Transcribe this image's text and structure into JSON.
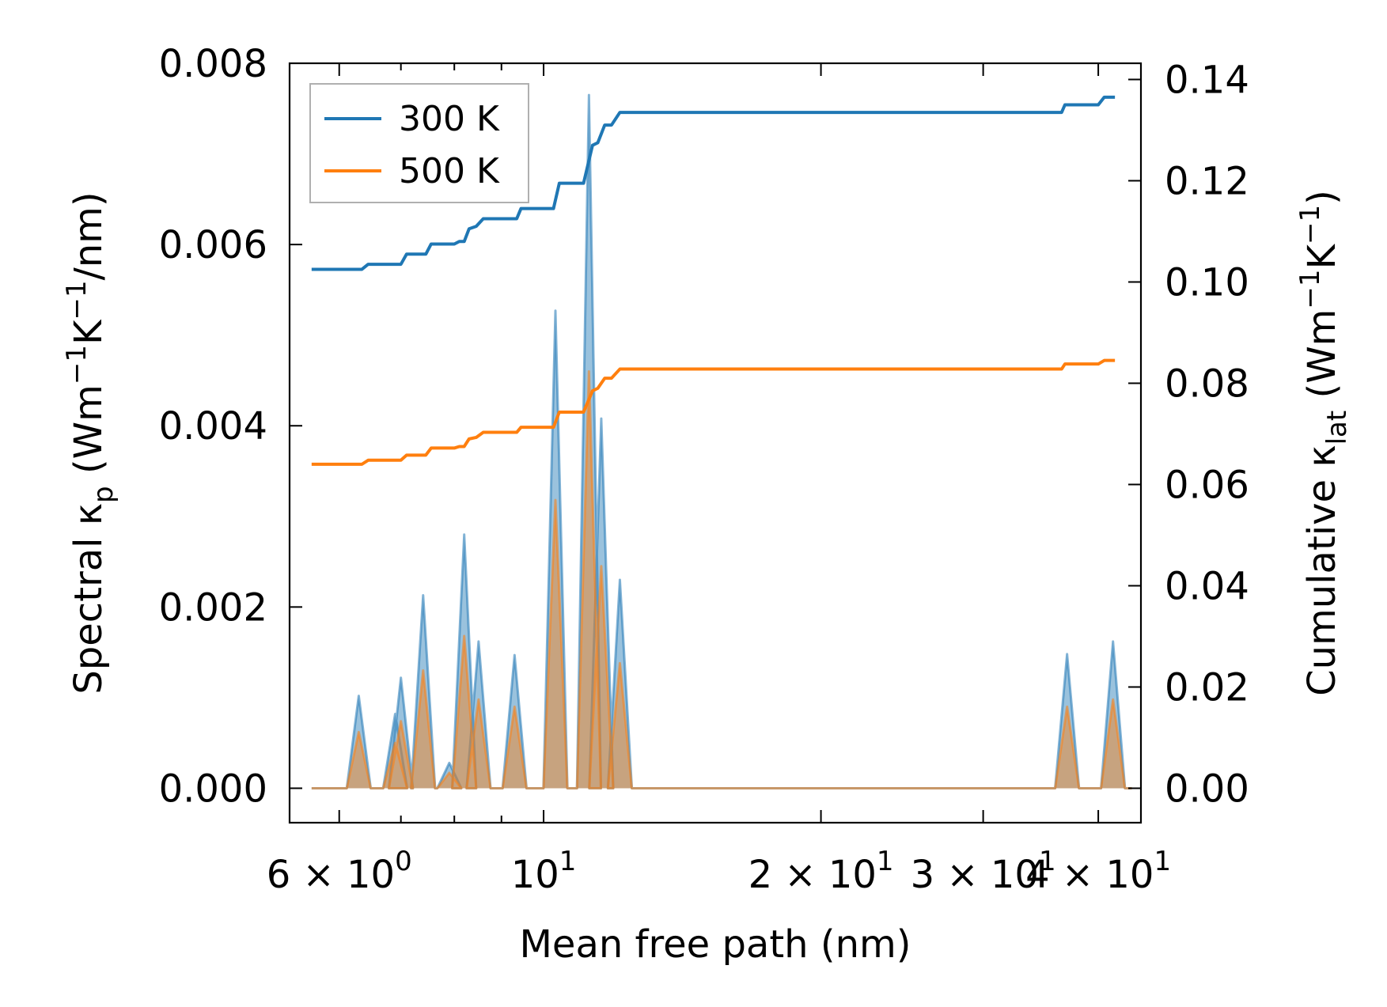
{
  "chart_data": {
    "type": "line",
    "xscale": "log",
    "xlim": [
      5.3,
      44.5
    ],
    "x_ticks": [
      {
        "value": 6,
        "base": "6",
        "op": " × ",
        "mant": "10",
        "exp": "0"
      },
      {
        "value": 10,
        "base": "",
        "op": "",
        "mant": "10",
        "exp": "1"
      },
      {
        "value": 20,
        "base": "2",
        "op": " × ",
        "mant": "10",
        "exp": "1"
      },
      {
        "value": 30,
        "base": "3",
        "op": " × ",
        "mant": "10",
        "exp": "1"
      },
      {
        "value": 40,
        "base": "4",
        "op": " × ",
        "mant": "10",
        "exp": "1"
      }
    ],
    "x_minor_ticks": [
      7,
      8,
      9
    ],
    "xlabel": "Mean free path (nm)",
    "left_axis": {
      "label_main": "Spectral κ",
      "label_sub": "p",
      "label_units_open": " (Wm",
      "label_units_exp1": "−1",
      "label_units_mid": "K",
      "label_units_exp2": "−1",
      "label_units_close": "/nm)",
      "ylim": [
        -0.00038,
        0.008
      ],
      "ticks": [
        0.0,
        0.002,
        0.004,
        0.006,
        0.008
      ],
      "tick_labels": [
        "0.000",
        "0.002",
        "0.004",
        "0.006",
        "0.008"
      ]
    },
    "right_axis": {
      "label_main": "Cumulative κ",
      "label_sub": "lat",
      "label_units_open": " (Wm",
      "label_units_exp1": "−1",
      "label_units_mid": "K",
      "label_units_exp2": "−1",
      "label_units_close": ")",
      "ylim": [
        -0.0068,
        0.1432
      ],
      "ticks": [
        0.0,
        0.02,
        0.04,
        0.06,
        0.08,
        0.1,
        0.12,
        0.14
      ],
      "tick_labels": [
        "0.00",
        "0.02",
        "0.04",
        "0.06",
        "0.08",
        "0.10",
        "0.12",
        "0.14"
      ]
    },
    "legend": {
      "position": "top-left",
      "entries": [
        {
          "name": "300 K",
          "color": "#1f77b4"
        },
        {
          "name": "500 K",
          "color": "#ff7f0e"
        }
      ]
    },
    "spectral_x_range": [
      5.6,
      43.5
    ],
    "spectral_peaks": [
      {
        "x": 6.3,
        "v300": 0.00102,
        "v500": 0.00062
      },
      {
        "x": 6.9,
        "v300": 0.00082,
        "v500": 0.0005
      },
      {
        "x": 7.0,
        "v300": 0.00122,
        "v500": 0.00074
      },
      {
        "x": 7.4,
        "v300": 0.00213,
        "v500": 0.0013
      },
      {
        "x": 7.9,
        "v300": 0.00028,
        "v500": 0.00017
      },
      {
        "x": 8.2,
        "v300": 0.0028,
        "v500": 0.00168
      },
      {
        "x": 8.5,
        "v300": 0.00162,
        "v500": 0.00098
      },
      {
        "x": 9.3,
        "v300": 0.00147,
        "v500": 0.0009
      },
      {
        "x": 10.3,
        "v300": 0.00527,
        "v500": 0.00318
      },
      {
        "x": 11.2,
        "v300": 0.00765,
        "v500": 0.0046
      },
      {
        "x": 11.55,
        "v300": 0.00408,
        "v500": 0.00245
      },
      {
        "x": 12.1,
        "v300": 0.0023,
        "v500": 0.00138
      },
      {
        "x": 37.0,
        "v300": 0.00148,
        "v500": 0.0009
      },
      {
        "x": 41.5,
        "v300": 0.00162,
        "v500": 0.00098
      }
    ],
    "series": [
      {
        "name": "300 K",
        "color": "#1f77b4",
        "cumulative": [
          [
            5.6,
            0.1025
          ],
          [
            6.35,
            0.1025
          ],
          [
            6.45,
            0.1035
          ],
          [
            7.0,
            0.1035
          ],
          [
            7.1,
            0.1055
          ],
          [
            7.45,
            0.1055
          ],
          [
            7.55,
            0.1075
          ],
          [
            8.0,
            0.1075
          ],
          [
            8.1,
            0.108
          ],
          [
            8.2,
            0.108
          ],
          [
            8.3,
            0.1105
          ],
          [
            8.45,
            0.111
          ],
          [
            8.6,
            0.1125
          ],
          [
            9.35,
            0.1125
          ],
          [
            9.45,
            0.1145
          ],
          [
            10.25,
            0.1145
          ],
          [
            10.4,
            0.1195
          ],
          [
            11.05,
            0.1195
          ],
          [
            11.3,
            0.127
          ],
          [
            11.45,
            0.1275
          ],
          [
            11.65,
            0.131
          ],
          [
            11.85,
            0.131
          ],
          [
            12.1,
            0.1335
          ],
          [
            36.5,
            0.1335
          ],
          [
            36.8,
            0.135
          ],
          [
            40.0,
            0.135
          ],
          [
            40.6,
            0.1365
          ],
          [
            41.7,
            0.1365
          ]
        ]
      },
      {
        "name": "500 K",
        "color": "#ff7f0e",
        "cumulative": [
          [
            5.6,
            0.064
          ],
          [
            6.35,
            0.064
          ],
          [
            6.45,
            0.0648
          ],
          [
            7.0,
            0.0648
          ],
          [
            7.1,
            0.0658
          ],
          [
            7.45,
            0.0658
          ],
          [
            7.55,
            0.0672
          ],
          [
            8.0,
            0.0672
          ],
          [
            8.1,
            0.0675
          ],
          [
            8.2,
            0.0675
          ],
          [
            8.3,
            0.069
          ],
          [
            8.45,
            0.0693
          ],
          [
            8.6,
            0.0703
          ],
          [
            9.35,
            0.0703
          ],
          [
            9.45,
            0.0713
          ],
          [
            10.25,
            0.0713
          ],
          [
            10.4,
            0.0743
          ],
          [
            11.05,
            0.0743
          ],
          [
            11.3,
            0.0785
          ],
          [
            11.45,
            0.079
          ],
          [
            11.65,
            0.081
          ],
          [
            11.85,
            0.081
          ],
          [
            12.1,
            0.0828
          ],
          [
            36.5,
            0.0828
          ],
          [
            36.8,
            0.0838
          ],
          [
            40.0,
            0.0838
          ],
          [
            40.6,
            0.0845
          ],
          [
            41.7,
            0.0845
          ]
        ]
      }
    ]
  }
}
